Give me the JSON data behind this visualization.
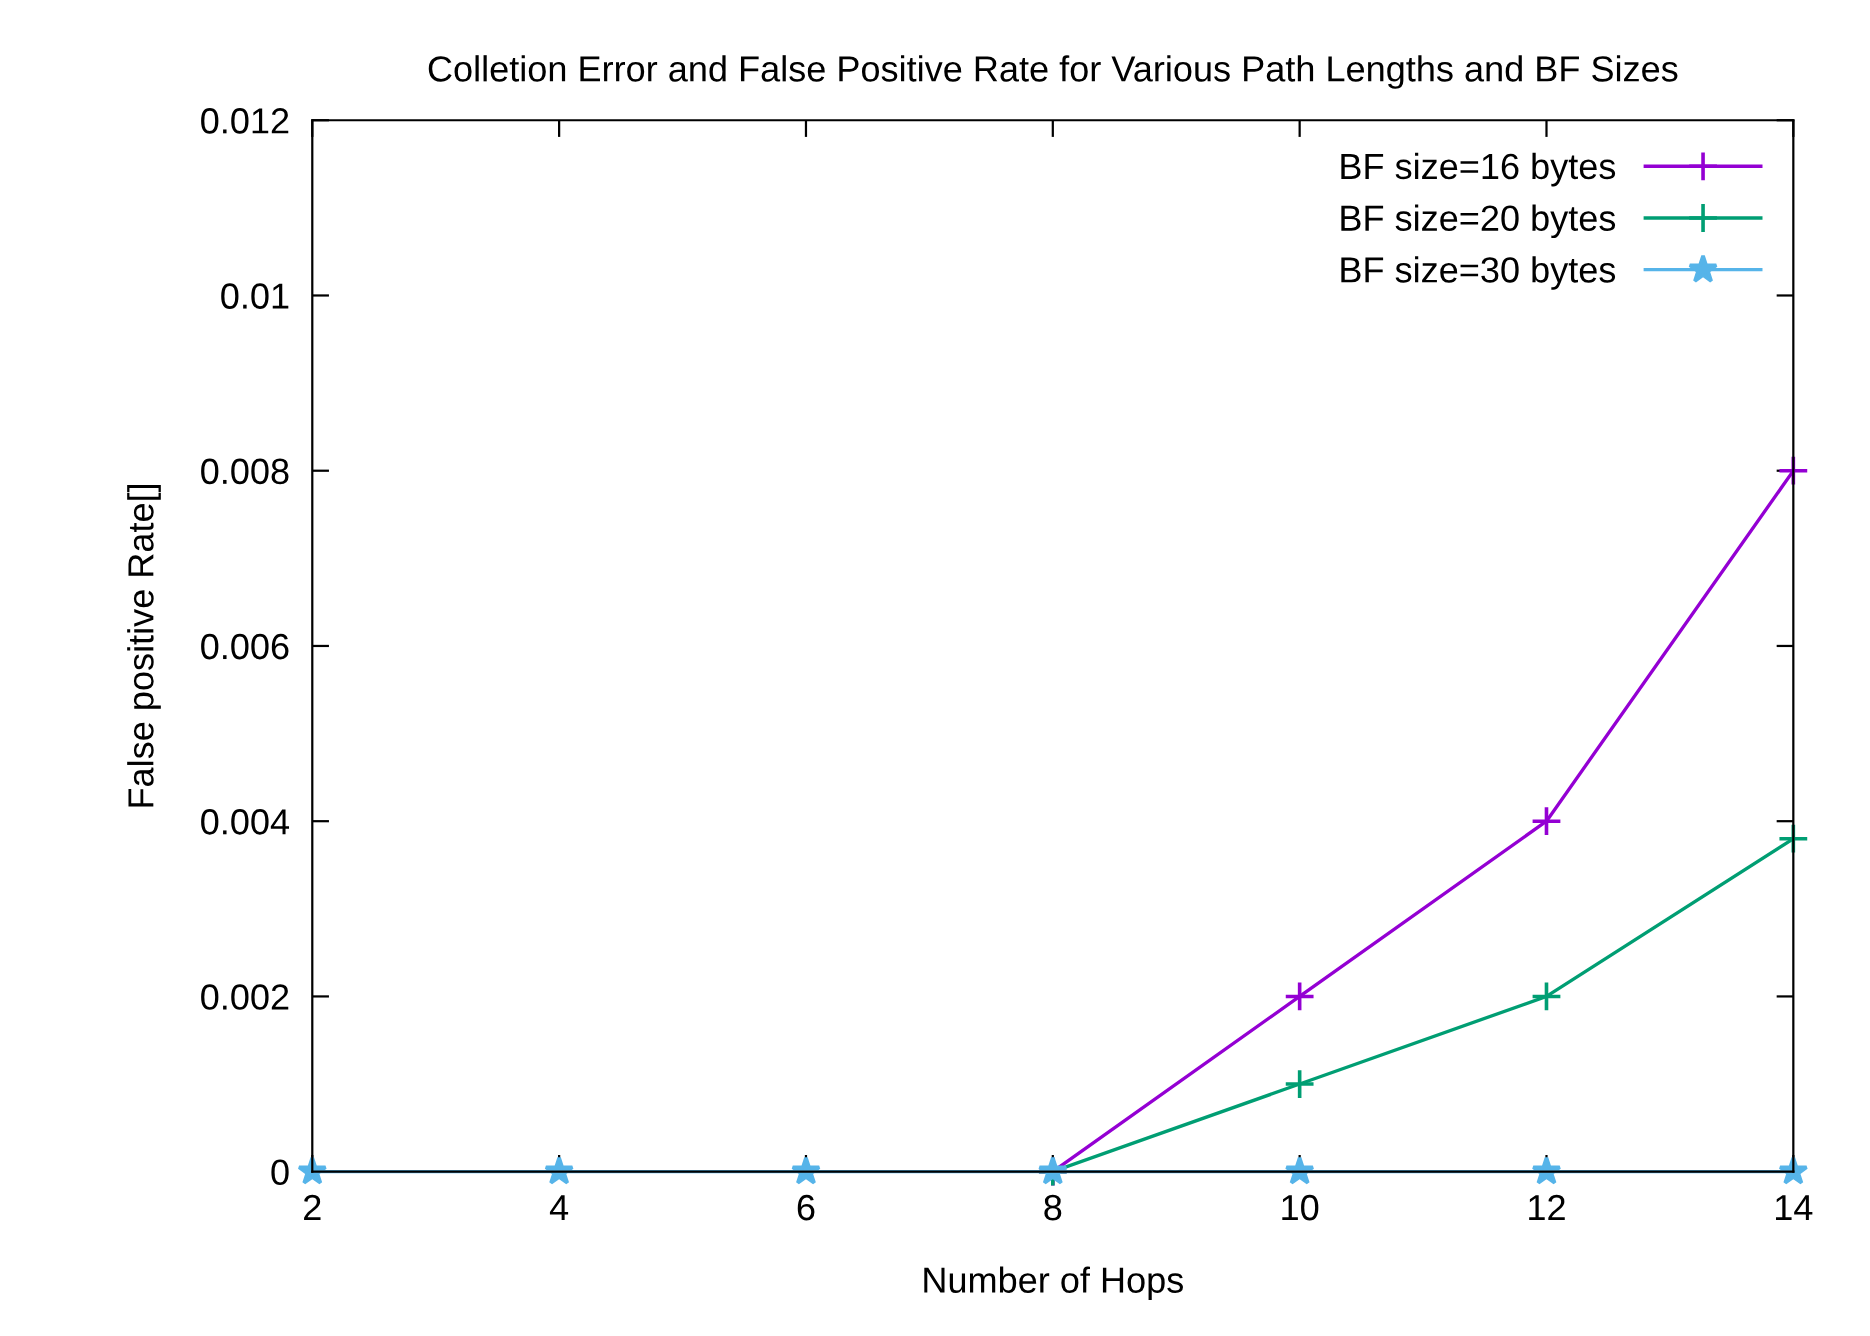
{
  "chart_data": {
    "type": "line",
    "title": "Colletion Error and False Positive Rate for Various Path Lengths and BF Sizes",
    "xlabel": "Number of Hops",
    "ylabel": "False positive Rate[]",
    "x": [
      2,
      4,
      6,
      8,
      10,
      12,
      14
    ],
    "series": [
      {
        "name": "BF size=16 bytes",
        "color": "#9400d3",
        "marker": "cross",
        "values": [
          null,
          null,
          null,
          0,
          0.002,
          0.004,
          0.008
        ]
      },
      {
        "name": "BF size=20 bytes",
        "color": "#009e73",
        "marker": "cross",
        "values": [
          null,
          null,
          null,
          0,
          0.001,
          0.002,
          0.0038
        ]
      },
      {
        "name": "BF size=30 bytes",
        "color": "#56b4e9",
        "marker": "star",
        "values": [
          0,
          0,
          0,
          0,
          0,
          0,
          0
        ]
      }
    ],
    "xlim": [
      2,
      14
    ],
    "xticks": [
      2,
      4,
      6,
      8,
      10,
      12,
      14
    ],
    "ylim": [
      0,
      0.012
    ],
    "yticks": [
      0,
      0.002,
      0.004,
      0.006,
      0.008,
      0.01,
      0.012
    ],
    "grid": false,
    "legend": "top right",
    "line_style": "solid"
  }
}
